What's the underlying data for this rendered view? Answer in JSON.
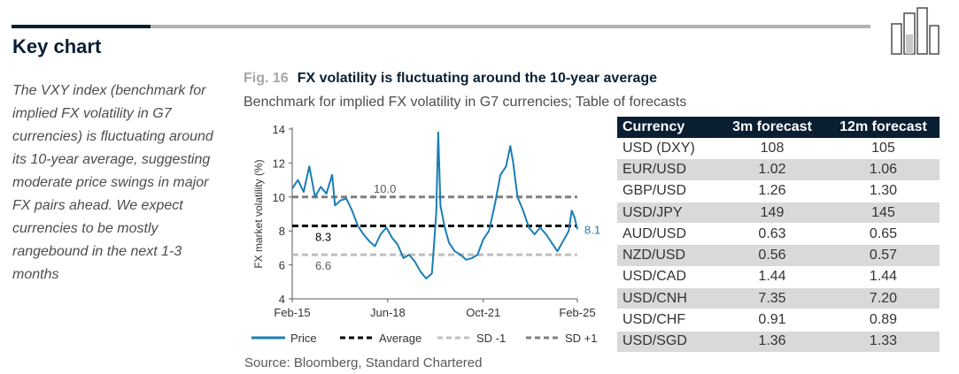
{
  "heading": "Key chart",
  "intro_text": "The VXY index (benchmark for implied FX volatility in G7 currencies) is fluctuating around its 10-year average, suggesting moderate price swings in major FX pairs ahead. We expect currencies to be mostly rangebound in the next 1-3 months",
  "figure": {
    "number": "Fig. 16",
    "title": "FX volatility is fluctuating around the 10-year average",
    "subtitle": "Benchmark for implied FX volatility in G7 currencies; Table of forecasts",
    "source": "Source: Bloomberg, Standard Chartered"
  },
  "colors": {
    "navy": "#0b1f33",
    "price_line": "#1a7db5",
    "average_line": "#000000",
    "sd_minus_line": "#bfbfbf",
    "sd_plus_line": "#7f7f7f"
  },
  "chart_data": {
    "type": "line",
    "ylabel": "FX market volatility (%)",
    "ylim": [
      4,
      14
    ],
    "yticks": [
      "4",
      "6",
      "8",
      "10",
      "12",
      "14"
    ],
    "xlim": [
      2015.1,
      2025.1
    ],
    "xticks": [
      {
        "label": "Feb-15",
        "x": 2015.1
      },
      {
        "label": "Jun-18",
        "x": 2018.45
      },
      {
        "label": "Oct-21",
        "x": 2021.8
      },
      {
        "label": "Feb-25",
        "x": 2025.1
      }
    ],
    "reference_lines": [
      {
        "name": "Average",
        "value": 8.3,
        "label": "8.3"
      },
      {
        "name": "SD -1",
        "value": 6.6,
        "label": "6.6"
      },
      {
        "name": "SD +1",
        "value": 10.0,
        "label": "10.0"
      }
    ],
    "end_label": "8.1",
    "legend": [
      "Price",
      "Average",
      "SD -1",
      "SD +1"
    ],
    "legend_position": "bottom",
    "series": [
      {
        "name": "Price",
        "x": [
          2015.1,
          2015.3,
          2015.5,
          2015.7,
          2015.9,
          2016.1,
          2016.3,
          2016.5,
          2016.6,
          2016.8,
          2017.0,
          2017.2,
          2017.4,
          2017.6,
          2017.8,
          2018.0,
          2018.2,
          2018.4,
          2018.6,
          2018.8,
          2019.0,
          2019.2,
          2019.4,
          2019.6,
          2019.8,
          2020.0,
          2020.15,
          2020.22,
          2020.3,
          2020.45,
          2020.6,
          2020.8,
          2021.0,
          2021.2,
          2021.4,
          2021.6,
          2021.8,
          2022.0,
          2022.2,
          2022.4,
          2022.6,
          2022.75,
          2022.85,
          2023.0,
          2023.2,
          2023.4,
          2023.6,
          2023.8,
          2024.0,
          2024.2,
          2024.4,
          2024.6,
          2024.8,
          2024.9,
          2025.0,
          2025.1
        ],
        "values": [
          10.5,
          11.0,
          10.3,
          11.8,
          10.0,
          10.6,
          10.2,
          11.3,
          9.5,
          9.8,
          9.9,
          9.2,
          8.3,
          7.8,
          7.4,
          7.1,
          7.8,
          8.2,
          7.6,
          7.2,
          6.4,
          6.6,
          6.2,
          5.6,
          5.2,
          5.5,
          9.0,
          13.8,
          9.5,
          8.2,
          7.3,
          6.8,
          6.6,
          6.3,
          6.4,
          6.6,
          7.5,
          8.0,
          9.5,
          11.3,
          11.8,
          13.0,
          12.0,
          10.0,
          9.2,
          8.2,
          7.8,
          8.2,
          7.8,
          7.3,
          6.8,
          7.4,
          8.0,
          9.2,
          8.8,
          8.1
        ]
      }
    ]
  },
  "table": {
    "headers": [
      "Currency",
      "3m forecast",
      "12m forecast"
    ],
    "rows": [
      [
        "USD (DXY)",
        "108",
        "105"
      ],
      [
        "EUR/USD",
        "1.02",
        "1.06"
      ],
      [
        "GBP/USD",
        "1.26",
        "1.30"
      ],
      [
        "USD/JPY",
        "149",
        "145"
      ],
      [
        "AUD/USD",
        "0.63",
        "0.65"
      ],
      [
        "NZD/USD",
        "0.56",
        "0.57"
      ],
      [
        "USD/CAD",
        "1.44",
        "1.44"
      ],
      [
        "USD/CNH",
        "7.35",
        "7.20"
      ],
      [
        "USD/CHF",
        "0.91",
        "0.89"
      ],
      [
        "USD/SGD",
        "1.36",
        "1.33"
      ]
    ]
  }
}
